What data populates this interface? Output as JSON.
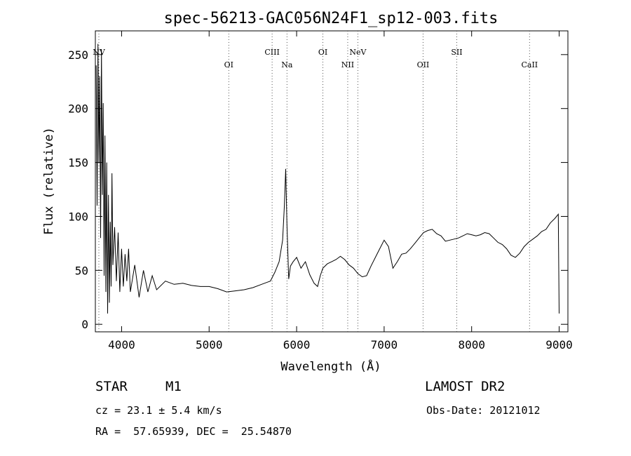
{
  "chart_data": {
    "type": "line",
    "title": "spec-56213-GAC056N24F1_sp12-003.fits",
    "xlabel": "Wavelength (Å)",
    "ylabel": "Flux (relative)",
    "xlim": [
      3700,
      9100
    ],
    "ylim": [
      -7,
      272
    ],
    "xticks": [
      4000,
      5000,
      6000,
      7000,
      8000,
      9000
    ],
    "yticks": [
      0,
      50,
      100,
      150,
      200,
      250
    ],
    "line_markers": [
      {
        "label": "NV",
        "wavelength": 3740
      },
      {
        "label": "OI",
        "wavelength": 5225
      },
      {
        "label": "CIII",
        "wavelength": 5720
      },
      {
        "label": "Na",
        "wavelength": 5890
      },
      {
        "label": "OI",
        "wavelength": 6300
      },
      {
        "label": "NII",
        "wavelength": 6584
      },
      {
        "label": "NeV",
        "wavelength": 6700
      },
      {
        "label": "OII",
        "wavelength": 7445
      },
      {
        "label": "SII",
        "wavelength": 7830
      },
      {
        "label": "CaII",
        "wavelength": 8662
      }
    ],
    "series": [
      {
        "values": [
          [
            3710,
            240
          ],
          [
            3720,
            110
          ],
          [
            3730,
            260
          ],
          [
            3740,
            150
          ],
          [
            3750,
            230
          ],
          [
            3760,
            80
          ],
          [
            3770,
            255
          ],
          [
            3780,
            120
          ],
          [
            3790,
            205
          ],
          [
            3800,
            45
          ],
          [
            3810,
            175
          ],
          [
            3820,
            30
          ],
          [
            3830,
            150
          ],
          [
            3840,
            10
          ],
          [
            3850,
            120
          ],
          [
            3860,
            20
          ],
          [
            3870,
            95
          ],
          [
            3880,
            35
          ],
          [
            3890,
            140
          ],
          [
            3900,
            55
          ],
          [
            3920,
            90
          ],
          [
            3940,
            40
          ],
          [
            3960,
            85
          ],
          [
            3980,
            30
          ],
          [
            4000,
            70
          ],
          [
            4020,
            35
          ],
          [
            4040,
            65
          ],
          [
            4060,
            40
          ],
          [
            4080,
            70
          ],
          [
            4100,
            30
          ],
          [
            4150,
            55
          ],
          [
            4200,
            25
          ],
          [
            4250,
            50
          ],
          [
            4300,
            30
          ],
          [
            4350,
            45
          ],
          [
            4400,
            32
          ],
          [
            4500,
            40
          ],
          [
            4600,
            37
          ],
          [
            4700,
            38
          ],
          [
            4800,
            36
          ],
          [
            4900,
            35
          ],
          [
            5000,
            35
          ],
          [
            5100,
            33
          ],
          [
            5200,
            30
          ],
          [
            5300,
            31
          ],
          [
            5400,
            32
          ],
          [
            5500,
            34
          ],
          [
            5600,
            37
          ],
          [
            5700,
            40
          ],
          [
            5750,
            48
          ],
          [
            5800,
            58
          ],
          [
            5840,
            78
          ],
          [
            5860,
            110
          ],
          [
            5875,
            144
          ],
          [
            5890,
            92
          ],
          [
            5910,
            42
          ],
          [
            5930,
            54
          ],
          [
            5960,
            58
          ],
          [
            6000,
            62
          ],
          [
            6050,
            52
          ],
          [
            6100,
            58
          ],
          [
            6150,
            46
          ],
          [
            6200,
            38
          ],
          [
            6240,
            35
          ],
          [
            6270,
            45
          ],
          [
            6300,
            52
          ],
          [
            6350,
            56
          ],
          [
            6400,
            58
          ],
          [
            6450,
            60
          ],
          [
            6500,
            63
          ],
          [
            6550,
            60
          ],
          [
            6600,
            55
          ],
          [
            6650,
            52
          ],
          [
            6700,
            47
          ],
          [
            6750,
            44
          ],
          [
            6800,
            45
          ],
          [
            6850,
            54
          ],
          [
            6900,
            62
          ],
          [
            6950,
            70
          ],
          [
            7000,
            78
          ],
          [
            7050,
            72
          ],
          [
            7100,
            52
          ],
          [
            7150,
            58
          ],
          [
            7200,
            65
          ],
          [
            7250,
            66
          ],
          [
            7300,
            70
          ],
          [
            7350,
            75
          ],
          [
            7400,
            80
          ],
          [
            7450,
            85
          ],
          [
            7500,
            87
          ],
          [
            7550,
            88
          ],
          [
            7600,
            84
          ],
          [
            7650,
            82
          ],
          [
            7700,
            77
          ],
          [
            7750,
            78
          ],
          [
            7800,
            79
          ],
          [
            7850,
            80
          ],
          [
            7900,
            82
          ],
          [
            7950,
            84
          ],
          [
            8000,
            83
          ],
          [
            8050,
            82
          ],
          [
            8100,
            83
          ],
          [
            8150,
            85
          ],
          [
            8200,
            84
          ],
          [
            8250,
            80
          ],
          [
            8300,
            76
          ],
          [
            8350,
            74
          ],
          [
            8400,
            70
          ],
          [
            8450,
            64
          ],
          [
            8500,
            62
          ],
          [
            8550,
            66
          ],
          [
            8600,
            72
          ],
          [
            8650,
            76
          ],
          [
            8700,
            79
          ],
          [
            8750,
            82
          ],
          [
            8800,
            86
          ],
          [
            8850,
            88
          ],
          [
            8900,
            94
          ],
          [
            8950,
            98
          ],
          [
            8990,
            102
          ],
          [
            9000,
            10
          ]
        ]
      }
    ]
  },
  "footer": {
    "object_class": "STAR",
    "subclass": "M1",
    "survey": "LAMOST DR2",
    "cz": "cz = 23.1 ± 5.4 km/s",
    "obs_date": "Obs-Date: 20121012",
    "coords": "RA =  57.65939, DEC =  25.54870"
  }
}
